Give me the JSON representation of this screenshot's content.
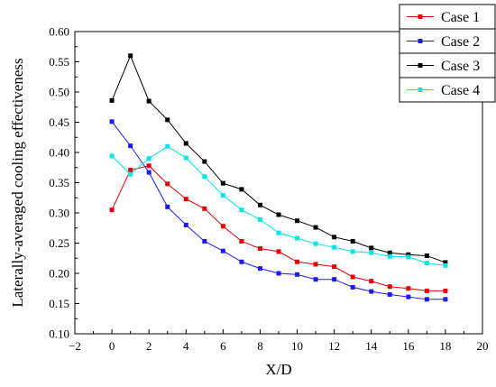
{
  "chart_data": {
    "type": "line",
    "xlabel": "X/D",
    "ylabel": "Laterally-averaged cooling effectiveness",
    "xlim": [
      -2,
      20
    ],
    "ylim": [
      0.1,
      0.6
    ],
    "x_ticks": [
      -2,
      0,
      2,
      4,
      6,
      8,
      10,
      12,
      14,
      16,
      18,
      20
    ],
    "x_tick_labels": [
      "−2",
      "0",
      "2",
      "4",
      "6",
      "8",
      "10",
      "12",
      "14",
      "16",
      "18",
      "20"
    ],
    "y_ticks": [
      0.1,
      0.15,
      0.2,
      0.25,
      0.3,
      0.35,
      0.4,
      0.45,
      0.5,
      0.55,
      0.6
    ],
    "y_tick_labels": [
      "0.10",
      "0.15",
      "0.20",
      "0.25",
      "0.30",
      "0.35",
      "0.40",
      "0.45",
      "0.50",
      "0.55",
      "0.60"
    ],
    "grid": false,
    "legend_position": "top-right",
    "marker": "square",
    "x": [
      0,
      1,
      2,
      3,
      4,
      5,
      6,
      7,
      8,
      9,
      10,
      11,
      12,
      13,
      14,
      15,
      16,
      17,
      18
    ],
    "series": [
      {
        "name": "Case 1",
        "color": "#e60000",
        "values": [
          0.305,
          0.371,
          0.378,
          0.348,
          0.323,
          0.307,
          0.278,
          0.253,
          0.241,
          0.236,
          0.219,
          0.215,
          0.211,
          0.194,
          0.187,
          0.178,
          0.175,
          0.171,
          0.171
        ]
      },
      {
        "name": "Case 2",
        "color": "#1a1aff",
        "values": [
          0.451,
          0.411,
          0.367,
          0.31,
          0.28,
          0.253,
          0.237,
          0.219,
          0.208,
          0.2,
          0.198,
          0.19,
          0.19,
          0.177,
          0.17,
          0.165,
          0.161,
          0.157,
          0.157
        ]
      },
      {
        "name": "Case 3",
        "color": "#000000",
        "values": [
          0.486,
          0.56,
          0.485,
          0.454,
          0.415,
          0.385,
          0.349,
          0.339,
          0.313,
          0.297,
          0.287,
          0.276,
          0.26,
          0.253,
          0.242,
          0.234,
          0.231,
          0.229,
          0.218
        ]
      },
      {
        "name": "Case 4",
        "color": "#00e5e5",
        "values": [
          0.394,
          0.364,
          0.39,
          0.41,
          0.391,
          0.36,
          0.329,
          0.305,
          0.289,
          0.267,
          0.258,
          0.249,
          0.243,
          0.236,
          0.234,
          0.228,
          0.227,
          0.217,
          0.213
        ]
      }
    ]
  }
}
